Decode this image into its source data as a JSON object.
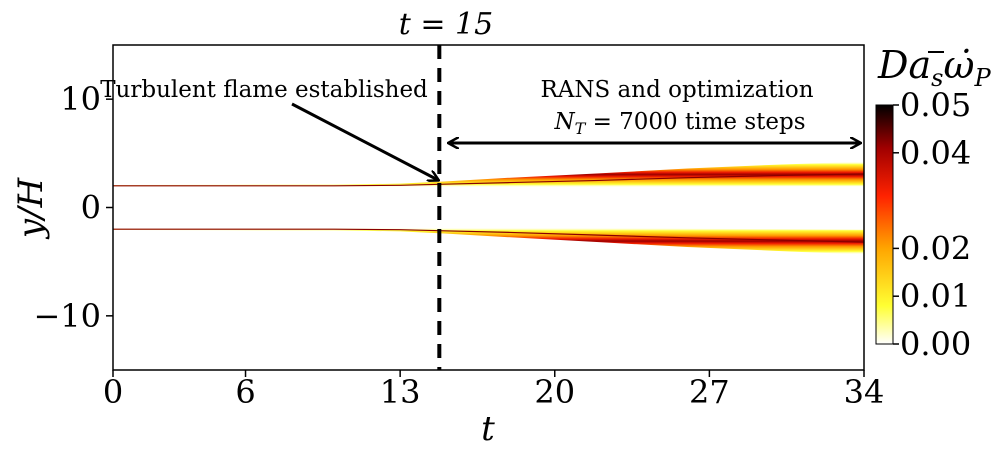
{
  "chart_data": {
    "type": "heatmap",
    "title": "",
    "top_label": "t = 15",
    "xlabel": "t",
    "ylabel": "y/H",
    "xlim": [
      0,
      34
    ],
    "ylim": [
      -15,
      15
    ],
    "x_ticks": [
      0,
      6,
      13,
      20,
      27,
      34
    ],
    "y_ticks": [
      10,
      0,
      -10
    ],
    "y_tick_labels": [
      "10",
      "0",
      "−10"
    ],
    "vline_t": 15,
    "series": [
      {
        "t": [
          0,
          5,
          10,
          13,
          15,
          18,
          22,
          26,
          30,
          34
        ],
        "center": [
          2.0,
          2.0,
          2.0,
          2.05,
          2.15,
          2.3,
          2.5,
          2.75,
          2.95,
          3.1
        ],
        "half_width": [
          0.08,
          0.09,
          0.11,
          0.15,
          0.25,
          0.45,
          0.65,
          0.85,
          1.0,
          1.15
        ]
      },
      {
        "t": [
          0,
          5,
          10,
          13,
          15,
          18,
          22,
          26,
          30,
          34
        ],
        "center": [
          -2.0,
          -2.0,
          -2.0,
          -2.05,
          -2.15,
          -2.3,
          -2.55,
          -2.8,
          -3.0,
          -3.2
        ],
        "half_width": [
          0.08,
          0.09,
          0.11,
          0.15,
          0.25,
          0.45,
          0.65,
          0.85,
          1.0,
          1.15
        ]
      }
    ],
    "annotations": {
      "left_text": "Turbulent flame established",
      "right_line1": "RANS and optimization",
      "right_line2_prefix": "N",
      "right_line2_sub": "T",
      "right_line2_suffix": " = 7000 time steps"
    },
    "colorbar": {
      "title_main": "Da",
      "title_sub_s": "s",
      "title_omega": "ω̇",
      "title_sub_p": "P",
      "ticks": [
        0.05,
        0.04,
        0.02,
        0.01,
        0.0
      ],
      "tick_labels": [
        "0.05",
        "0.04",
        "0.02",
        "0.01",
        "0.00"
      ],
      "range": [
        0,
        0.05
      ],
      "colormap": "hot_r",
      "stops": [
        "#ffffff",
        "#ffff33",
        "#ffa500",
        "#ff2200",
        "#a00000",
        "#000000"
      ]
    }
  }
}
